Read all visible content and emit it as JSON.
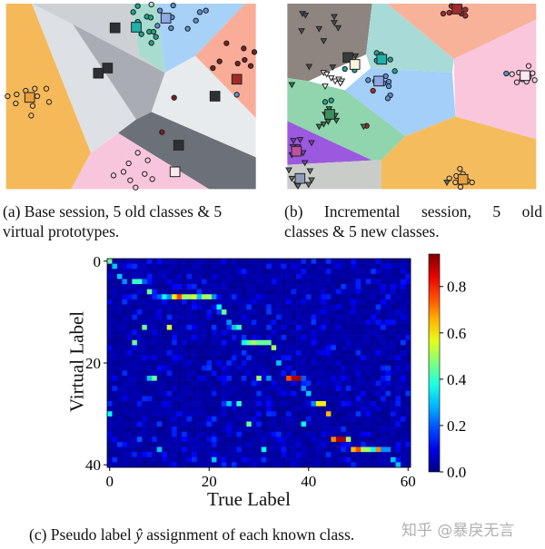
{
  "subfigures": {
    "a": {
      "caption": "(a) Base session, 5 old classes & 5 virtual prototypes."
    },
    "b": {
      "caption_line1": "(b) Incremental session, 5 old",
      "caption_line2": "classes & 5 new classes."
    },
    "c": {
      "caption_prefix": "(c) Pseudo label ",
      "caption_symbol": "ŷ",
      "caption_suffix": " assignment of each known class."
    }
  },
  "watermark": "知乎 @暴戾无言",
  "chart_data": {
    "type": "heatmap",
    "xlabel": "True Label",
    "ylabel": "Virtual Label",
    "xlim": [
      0,
      60
    ],
    "ylim": [
      40,
      0
    ],
    "xticks": [
      "0",
      "20",
      "40",
      "60"
    ],
    "yticks": [
      "0",
      "20",
      "40"
    ],
    "colormap": "jet",
    "colorbar": {
      "range": [
        0.0,
        0.94
      ],
      "ticks": [
        "0.0",
        "0.2",
        "0.4",
        "0.6",
        "0.8"
      ]
    },
    "background": "low values (~0.0–0.15) in remaining cells",
    "cells": [
      [
        0,
        0,
        0.45
      ],
      [
        1,
        1,
        0.3
      ],
      [
        2,
        3,
        0.3
      ],
      [
        3,
        4,
        0.25
      ],
      [
        5,
        4,
        0.4
      ],
      [
        6,
        4,
        0.4
      ],
      [
        7,
        4,
        0.2
      ],
      [
        8,
        6,
        0.45
      ],
      [
        9,
        7,
        0.15
      ],
      [
        10,
        7,
        0.2
      ],
      [
        11,
        7,
        0.35
      ],
      [
        12,
        7,
        0.25
      ],
      [
        13,
        7,
        0.6
      ],
      [
        14,
        7,
        0.75
      ],
      [
        15,
        7,
        0.5
      ],
      [
        16,
        7,
        0.5
      ],
      [
        17,
        7,
        0.55
      ],
      [
        18,
        7,
        0.3
      ],
      [
        19,
        7,
        0.5
      ],
      [
        20,
        7,
        0.5
      ],
      [
        21,
        7,
        0.25
      ],
      [
        22,
        9,
        0.35
      ],
      [
        23,
        10,
        0.45
      ],
      [
        24,
        12,
        0.25
      ],
      [
        25,
        13,
        0.3
      ],
      [
        26,
        13,
        0.4
      ],
      [
        7,
        13,
        0.45
      ],
      [
        12,
        13,
        0.55
      ],
      [
        5,
        16,
        0.45
      ],
      [
        27,
        16,
        0.35
      ],
      [
        28,
        16,
        0.45
      ],
      [
        29,
        16,
        0.5
      ],
      [
        30,
        16,
        0.45
      ],
      [
        31,
        16,
        0.45
      ],
      [
        32,
        16,
        0.45
      ],
      [
        33,
        17,
        0.5
      ],
      [
        34,
        20,
        0.3
      ],
      [
        8,
        23,
        0.3
      ],
      [
        9,
        23,
        0.45
      ],
      [
        30,
        23,
        0.5
      ],
      [
        32,
        23,
        0.25
      ],
      [
        36,
        23,
        0.75
      ],
      [
        37,
        23,
        0.9
      ],
      [
        38,
        23,
        0.9
      ],
      [
        39,
        23,
        0.2
      ],
      [
        39,
        25,
        0.25
      ],
      [
        40,
        26,
        0.3
      ],
      [
        24,
        28,
        0.3
      ],
      [
        26,
        28,
        0.4
      ],
      [
        41,
        28,
        0.25
      ],
      [
        42,
        28,
        0.6
      ],
      [
        43,
        28,
        0.6
      ],
      [
        0,
        30,
        0.35
      ],
      [
        44,
        30,
        0.65
      ],
      [
        28,
        32,
        0.45
      ],
      [
        39,
        32,
        0.35
      ],
      [
        6,
        35,
        0.2
      ],
      [
        45,
        35,
        0.7
      ],
      [
        46,
        35,
        0.9
      ],
      [
        47,
        35,
        0.9
      ],
      [
        48,
        35,
        0.5
      ],
      [
        10,
        37,
        0.3
      ],
      [
        31,
        37,
        0.35
      ],
      [
        49,
        37,
        0.65
      ],
      [
        50,
        37,
        0.75
      ],
      [
        51,
        37,
        0.5
      ],
      [
        52,
        37,
        0.5
      ],
      [
        53,
        37,
        0.35
      ],
      [
        54,
        37,
        0.7
      ],
      [
        55,
        37,
        0.25
      ],
      [
        56,
        37,
        0.25
      ],
      [
        21,
        39,
        0.3
      ],
      [
        57,
        39,
        0.3
      ],
      [
        58,
        40,
        0.3
      ]
    ]
  }
}
